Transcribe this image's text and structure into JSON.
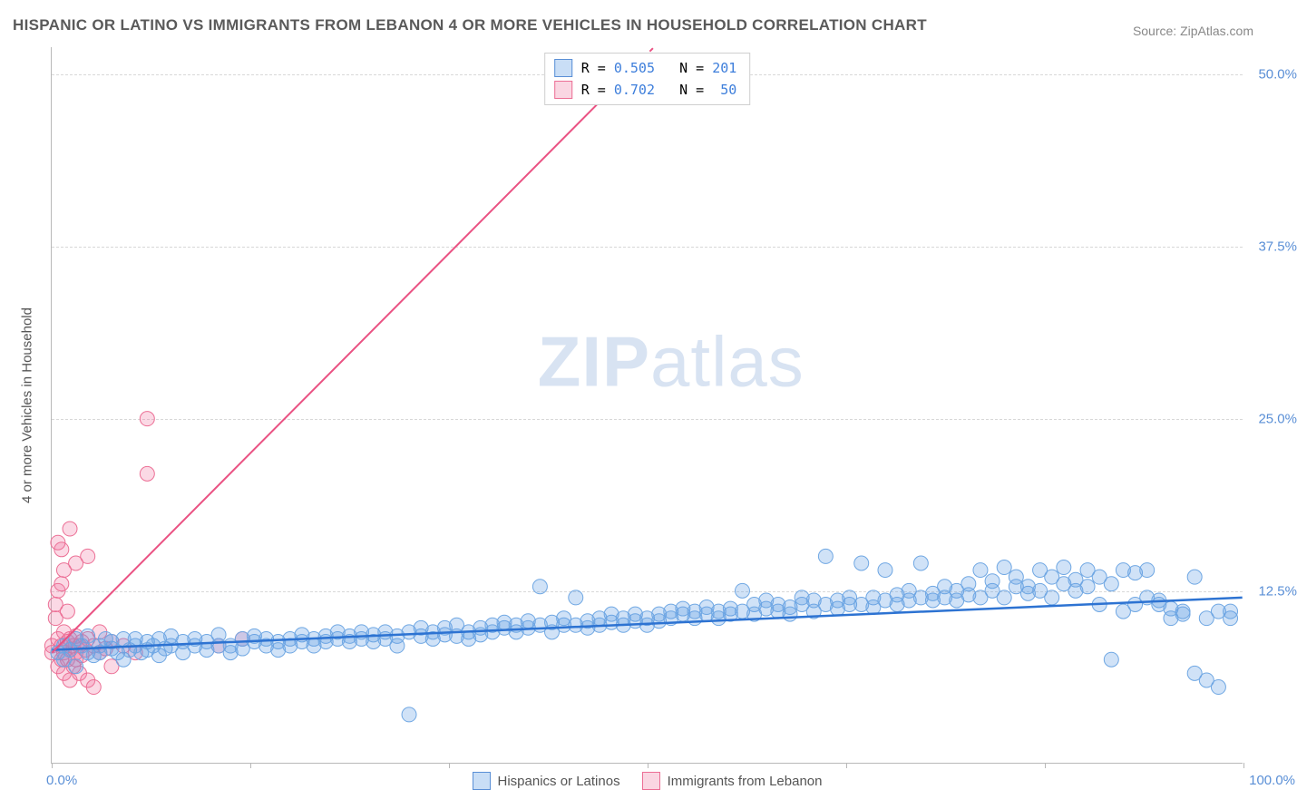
{
  "title": "HISPANIC OR LATINO VS IMMIGRANTS FROM LEBANON 4 OR MORE VEHICLES IN HOUSEHOLD CORRELATION CHART",
  "source": "Source: ZipAtlas.com",
  "y_axis_label": "4 or more Vehicles in Household",
  "watermark_a": "ZIP",
  "watermark_b": "atlas",
  "chart": {
    "type": "scatter",
    "xlim": [
      0,
      100
    ],
    "ylim": [
      0,
      52
    ],
    "x_ticks": [
      0,
      16.67,
      33.33,
      50,
      66.67,
      83.33,
      100
    ],
    "y_gridlines": [
      12.5,
      25.0,
      37.5,
      50.0
    ],
    "y_tick_labels": [
      "12.5%",
      "25.0%",
      "37.5%",
      "50.0%"
    ],
    "x_tick_labels": {
      "min": "0.0%",
      "max": "100.0%"
    },
    "background_color": "#ffffff",
    "grid_color": "#d8d8d8",
    "axis_color": "#b8b8b8",
    "marker_radius": 8,
    "series": {
      "blue": {
        "label": "Hispanics or Latinos",
        "fill": "rgba(100,160,230,0.30)",
        "stroke": "#6fa7e3",
        "R": "0.505",
        "N": "201",
        "trend": {
          "y_at_x0": 8.2,
          "y_at_x100": 12.0,
          "dash": false,
          "color": "#2d73d2",
          "width": 2.5
        },
        "points": [
          [
            0.5,
            8.0
          ],
          [
            1,
            7.5
          ],
          [
            1,
            8.5
          ],
          [
            1.5,
            8.2
          ],
          [
            2,
            9
          ],
          [
            2,
            7
          ],
          [
            2.5,
            8.5
          ],
          [
            3,
            8
          ],
          [
            3,
            9.2
          ],
          [
            3.5,
            7.8
          ],
          [
            4,
            8.5
          ],
          [
            4,
            8
          ],
          [
            4.5,
            9
          ],
          [
            5,
            8.3
          ],
          [
            5,
            8.8
          ],
          [
            5.5,
            8
          ],
          [
            6,
            9
          ],
          [
            6,
            7.5
          ],
          [
            6.5,
            8.2
          ],
          [
            7,
            8.5
          ],
          [
            7,
            9
          ],
          [
            7.5,
            8
          ],
          [
            8,
            8.8
          ],
          [
            8,
            8.2
          ],
          [
            8.5,
            8.5
          ],
          [
            9,
            9
          ],
          [
            9,
            7.8
          ],
          [
            9.5,
            8.3
          ],
          [
            10,
            8.5
          ],
          [
            10,
            9.2
          ],
          [
            11,
            8
          ],
          [
            11,
            8.8
          ],
          [
            12,
            8.5
          ],
          [
            12,
            9
          ],
          [
            13,
            8.2
          ],
          [
            13,
            8.8
          ],
          [
            14,
            8.5
          ],
          [
            14,
            9.3
          ],
          [
            15,
            8
          ],
          [
            15,
            8.5
          ],
          [
            16,
            9
          ],
          [
            16,
            8.3
          ],
          [
            17,
            8.8
          ],
          [
            17,
            9.2
          ],
          [
            18,
            8.5
          ],
          [
            18,
            9
          ],
          [
            19,
            8.8
          ],
          [
            19,
            8.2
          ],
          [
            20,
            9
          ],
          [
            20,
            8.5
          ],
          [
            21,
            9.3
          ],
          [
            21,
            8.8
          ],
          [
            22,
            9
          ],
          [
            22,
            8.5
          ],
          [
            23,
            9.2
          ],
          [
            23,
            8.8
          ],
          [
            24,
            9
          ],
          [
            24,
            9.5
          ],
          [
            25,
            8.8
          ],
          [
            25,
            9.2
          ],
          [
            26,
            9
          ],
          [
            26,
            9.5
          ],
          [
            27,
            8.8
          ],
          [
            27,
            9.3
          ],
          [
            28,
            9
          ],
          [
            28,
            9.5
          ],
          [
            29,
            9.2
          ],
          [
            29,
            8.5
          ],
          [
            30,
            9.5
          ],
          [
            30,
            3.5
          ],
          [
            31,
            9.2
          ],
          [
            31,
            9.8
          ],
          [
            32,
            9
          ],
          [
            32,
            9.5
          ],
          [
            33,
            9.3
          ],
          [
            33,
            9.8
          ],
          [
            34,
            9.2
          ],
          [
            34,
            10
          ],
          [
            35,
            9.5
          ],
          [
            35,
            9
          ],
          [
            36,
            9.8
          ],
          [
            36,
            9.3
          ],
          [
            37,
            10
          ],
          [
            37,
            9.5
          ],
          [
            38,
            9.8
          ],
          [
            38,
            10.2
          ],
          [
            39,
            9.5
          ],
          [
            39,
            10
          ],
          [
            40,
            10.3
          ],
          [
            40,
            9.8
          ],
          [
            41,
            12.8
          ],
          [
            41,
            10
          ],
          [
            42,
            9.5
          ],
          [
            42,
            10.2
          ],
          [
            43,
            10
          ],
          [
            43,
            10.5
          ],
          [
            44,
            12
          ],
          [
            44,
            10
          ],
          [
            45,
            10.3
          ],
          [
            45,
            9.8
          ],
          [
            46,
            10.5
          ],
          [
            46,
            10
          ],
          [
            47,
            10.2
          ],
          [
            47,
            10.8
          ],
          [
            48,
            10
          ],
          [
            48,
            10.5
          ],
          [
            49,
            10.3
          ],
          [
            49,
            10.8
          ],
          [
            50,
            10.5
          ],
          [
            50,
            10
          ],
          [
            51,
            10.8
          ],
          [
            51,
            10.3
          ],
          [
            52,
            11
          ],
          [
            52,
            10.5
          ],
          [
            53,
            10.8
          ],
          [
            53,
            11.2
          ],
          [
            54,
            10.5
          ],
          [
            54,
            11
          ],
          [
            55,
            10.8
          ],
          [
            55,
            11.3
          ],
          [
            56,
            11
          ],
          [
            56,
            10.5
          ],
          [
            57,
            11.2
          ],
          [
            57,
            10.8
          ],
          [
            58,
            12.5
          ],
          [
            58,
            11
          ],
          [
            59,
            11.5
          ],
          [
            59,
            10.8
          ],
          [
            60,
            11.2
          ],
          [
            60,
            11.8
          ],
          [
            61,
            11
          ],
          [
            61,
            11.5
          ],
          [
            62,
            11.3
          ],
          [
            62,
            10.8
          ],
          [
            63,
            11.5
          ],
          [
            63,
            12
          ],
          [
            64,
            11
          ],
          [
            64,
            11.8
          ],
          [
            65,
            11.5
          ],
          [
            65,
            15
          ],
          [
            66,
            11.2
          ],
          [
            66,
            11.8
          ],
          [
            67,
            11.5
          ],
          [
            67,
            12
          ],
          [
            68,
            14.5
          ],
          [
            68,
            11.5
          ],
          [
            69,
            12
          ],
          [
            69,
            11.3
          ],
          [
            70,
            11.8
          ],
          [
            70,
            14
          ],
          [
            71,
            11.5
          ],
          [
            71,
            12.2
          ],
          [
            72,
            11.8
          ],
          [
            72,
            12.5
          ],
          [
            73,
            12
          ],
          [
            73,
            14.5
          ],
          [
            74,
            11.8
          ],
          [
            74,
            12.3
          ],
          [
            75,
            12.8
          ],
          [
            75,
            12
          ],
          [
            76,
            12.5
          ],
          [
            76,
            11.8
          ],
          [
            77,
            12.2
          ],
          [
            77,
            13
          ],
          [
            78,
            14
          ],
          [
            78,
            12
          ],
          [
            79,
            12.5
          ],
          [
            79,
            13.2
          ],
          [
            80,
            12
          ],
          [
            80,
            14.2
          ],
          [
            81,
            12.8
          ],
          [
            81,
            13.5
          ],
          [
            82,
            12.3
          ],
          [
            82,
            12.8
          ],
          [
            83,
            14
          ],
          [
            83,
            12.5
          ],
          [
            84,
            13.5
          ],
          [
            84,
            12
          ],
          [
            85,
            13
          ],
          [
            85,
            14.2
          ],
          [
            86,
            12.5
          ],
          [
            86,
            13.3
          ],
          [
            87,
            14
          ],
          [
            87,
            12.8
          ],
          [
            88,
            11.5
          ],
          [
            88,
            13.5
          ],
          [
            89,
            7.5
          ],
          [
            89,
            13
          ],
          [
            90,
            11
          ],
          [
            90,
            14
          ],
          [
            91,
            11.5
          ],
          [
            91,
            13.8
          ],
          [
            92,
            12
          ],
          [
            92,
            14
          ],
          [
            93,
            11.5
          ],
          [
            93,
            11.8
          ],
          [
            94,
            10.5
          ],
          [
            94,
            11.2
          ],
          [
            95,
            10.8
          ],
          [
            95,
            11
          ],
          [
            96,
            13.5
          ],
          [
            96,
            6.5
          ],
          [
            97,
            10.5
          ],
          [
            97,
            6
          ],
          [
            98,
            11
          ],
          [
            98,
            5.5
          ],
          [
            99,
            10.5
          ],
          [
            99,
            11
          ]
        ]
      },
      "pink": {
        "label": "Immigrants from Lebanon",
        "fill": "rgba(240,120,160,0.28)",
        "stroke": "#ec6f95",
        "R": "0.702",
        "N": "50",
        "trend": {
          "y_at_x0": 8.0,
          "y_at_x100": 95,
          "dash_after_x": 47,
          "color": "#ea5283",
          "width": 2
        },
        "points": [
          [
            0,
            8
          ],
          [
            0,
            8.5
          ],
          [
            0.3,
            10.5
          ],
          [
            0.3,
            11.5
          ],
          [
            0.5,
            7
          ],
          [
            0.5,
            9
          ],
          [
            0.5,
            12.5
          ],
          [
            0.8,
            8.5
          ],
          [
            0.8,
            7.5
          ],
          [
            0.8,
            13
          ],
          [
            0.5,
            16
          ],
          [
            0.8,
            15.5
          ],
          [
            1,
            8
          ],
          [
            1,
            9.5
          ],
          [
            1,
            6.5
          ],
          [
            1,
            14
          ],
          [
            1.3,
            8.8
          ],
          [
            1.3,
            7.5
          ],
          [
            1.3,
            11
          ],
          [
            1.5,
            8.2
          ],
          [
            1.5,
            9
          ],
          [
            1.5,
            17
          ],
          [
            1.5,
            6
          ],
          [
            1.8,
            8.5
          ],
          [
            1.8,
            7
          ],
          [
            2,
            9.2
          ],
          [
            2,
            8
          ],
          [
            2,
            7.5
          ],
          [
            2,
            14.5
          ],
          [
            2.3,
            8.5
          ],
          [
            2.3,
            6.5
          ],
          [
            2.5,
            8.8
          ],
          [
            2.5,
            7.8
          ],
          [
            2.8,
            8.2
          ],
          [
            3,
            9
          ],
          [
            3,
            6
          ],
          [
            3,
            15
          ],
          [
            3.5,
            8.5
          ],
          [
            3.5,
            5.5
          ],
          [
            4,
            8
          ],
          [
            4,
            9.5
          ],
          [
            4.5,
            8.3
          ],
          [
            5,
            8.8
          ],
          [
            5,
            7
          ],
          [
            6,
            8.5
          ],
          [
            7,
            8
          ],
          [
            8,
            25
          ],
          [
            8,
            21
          ],
          [
            14,
            8.5
          ],
          [
            16,
            9
          ]
        ]
      }
    }
  }
}
